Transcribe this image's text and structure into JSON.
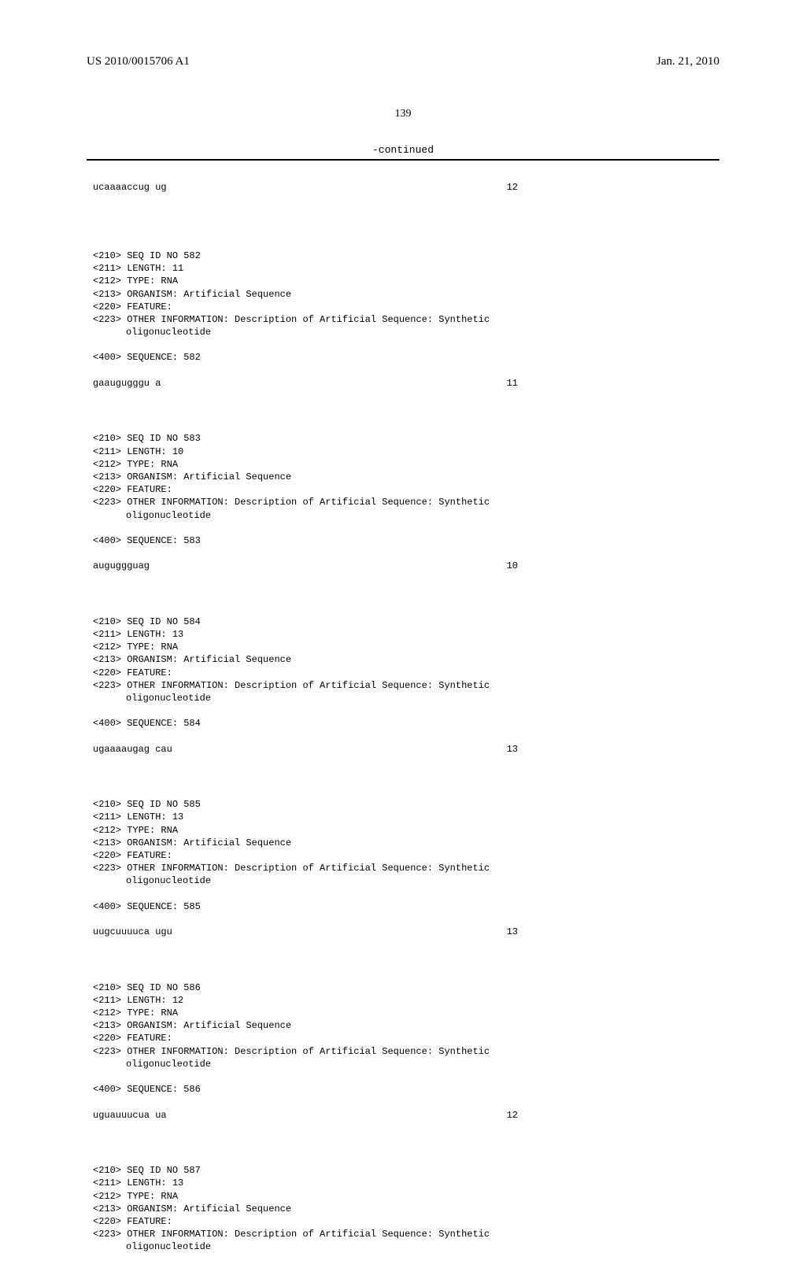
{
  "header": {
    "publication_number": "US 2010/0015706 A1",
    "publication_date": "Jan. 21, 2010"
  },
  "page_number": "139",
  "continued_label": "-continued",
  "first_sequence": {
    "data": "ucaaaaccug ug",
    "count": "12"
  },
  "entries": [
    {
      "seq_id": "SEQ ID NO 582",
      "length": "LENGTH: 11",
      "type": "TYPE: RNA",
      "organism": "ORGANISM: Artificial Sequence",
      "feature": "FEATURE:",
      "other_info": "OTHER INFORMATION: Description of Artificial Sequence: Synthetic",
      "other_info_2": "oligonucleotide",
      "sequence_label": "SEQUENCE: 582",
      "sequence_data": "gaaugugggu a",
      "sequence_count": "11"
    },
    {
      "seq_id": "SEQ ID NO 583",
      "length": "LENGTH: 10",
      "type": "TYPE: RNA",
      "organism": "ORGANISM: Artificial Sequence",
      "feature": "FEATURE:",
      "other_info": "OTHER INFORMATION: Description of Artificial Sequence: Synthetic",
      "other_info_2": "oligonucleotide",
      "sequence_label": "SEQUENCE: 583",
      "sequence_data": "auguggguag",
      "sequence_count": "10"
    },
    {
      "seq_id": "SEQ ID NO 584",
      "length": "LENGTH: 13",
      "type": "TYPE: RNA",
      "organism": "ORGANISM: Artificial Sequence",
      "feature": "FEATURE:",
      "other_info": "OTHER INFORMATION: Description of Artificial Sequence: Synthetic",
      "other_info_2": "oligonucleotide",
      "sequence_label": "SEQUENCE: 584",
      "sequence_data": "ugaaaaugag cau",
      "sequence_count": "13"
    },
    {
      "seq_id": "SEQ ID NO 585",
      "length": "LENGTH: 13",
      "type": "TYPE: RNA",
      "organism": "ORGANISM: Artificial Sequence",
      "feature": "FEATURE:",
      "other_info": "OTHER INFORMATION: Description of Artificial Sequence: Synthetic",
      "other_info_2": "oligonucleotide",
      "sequence_label": "SEQUENCE: 585",
      "sequence_data": "uugcuuuuca ugu",
      "sequence_count": "13"
    },
    {
      "seq_id": "SEQ ID NO 586",
      "length": "LENGTH: 12",
      "type": "TYPE: RNA",
      "organism": "ORGANISM: Artificial Sequence",
      "feature": "FEATURE:",
      "other_info": "OTHER INFORMATION: Description of Artificial Sequence: Synthetic",
      "other_info_2": "oligonucleotide",
      "sequence_label": "SEQUENCE: 586",
      "sequence_data": "uguauuucua ua",
      "sequence_count": "12"
    },
    {
      "seq_id": "SEQ ID NO 587",
      "length": "LENGTH: 13",
      "type": "TYPE: RNA",
      "organism": "ORGANISM: Artificial Sequence",
      "feature": "FEATURE:",
      "other_info": "OTHER INFORMATION: Description of Artificial Sequence: Synthetic",
      "other_info_2": "oligonucleotide",
      "sequence_label": null,
      "sequence_data": null,
      "sequence_count": null
    }
  ],
  "tags": {
    "t210": "<210>",
    "t211": "<211>",
    "t212": "<212>",
    "t213": "<213>",
    "t220": "<220>",
    "t223": "<223>",
    "t400": "<400>"
  }
}
